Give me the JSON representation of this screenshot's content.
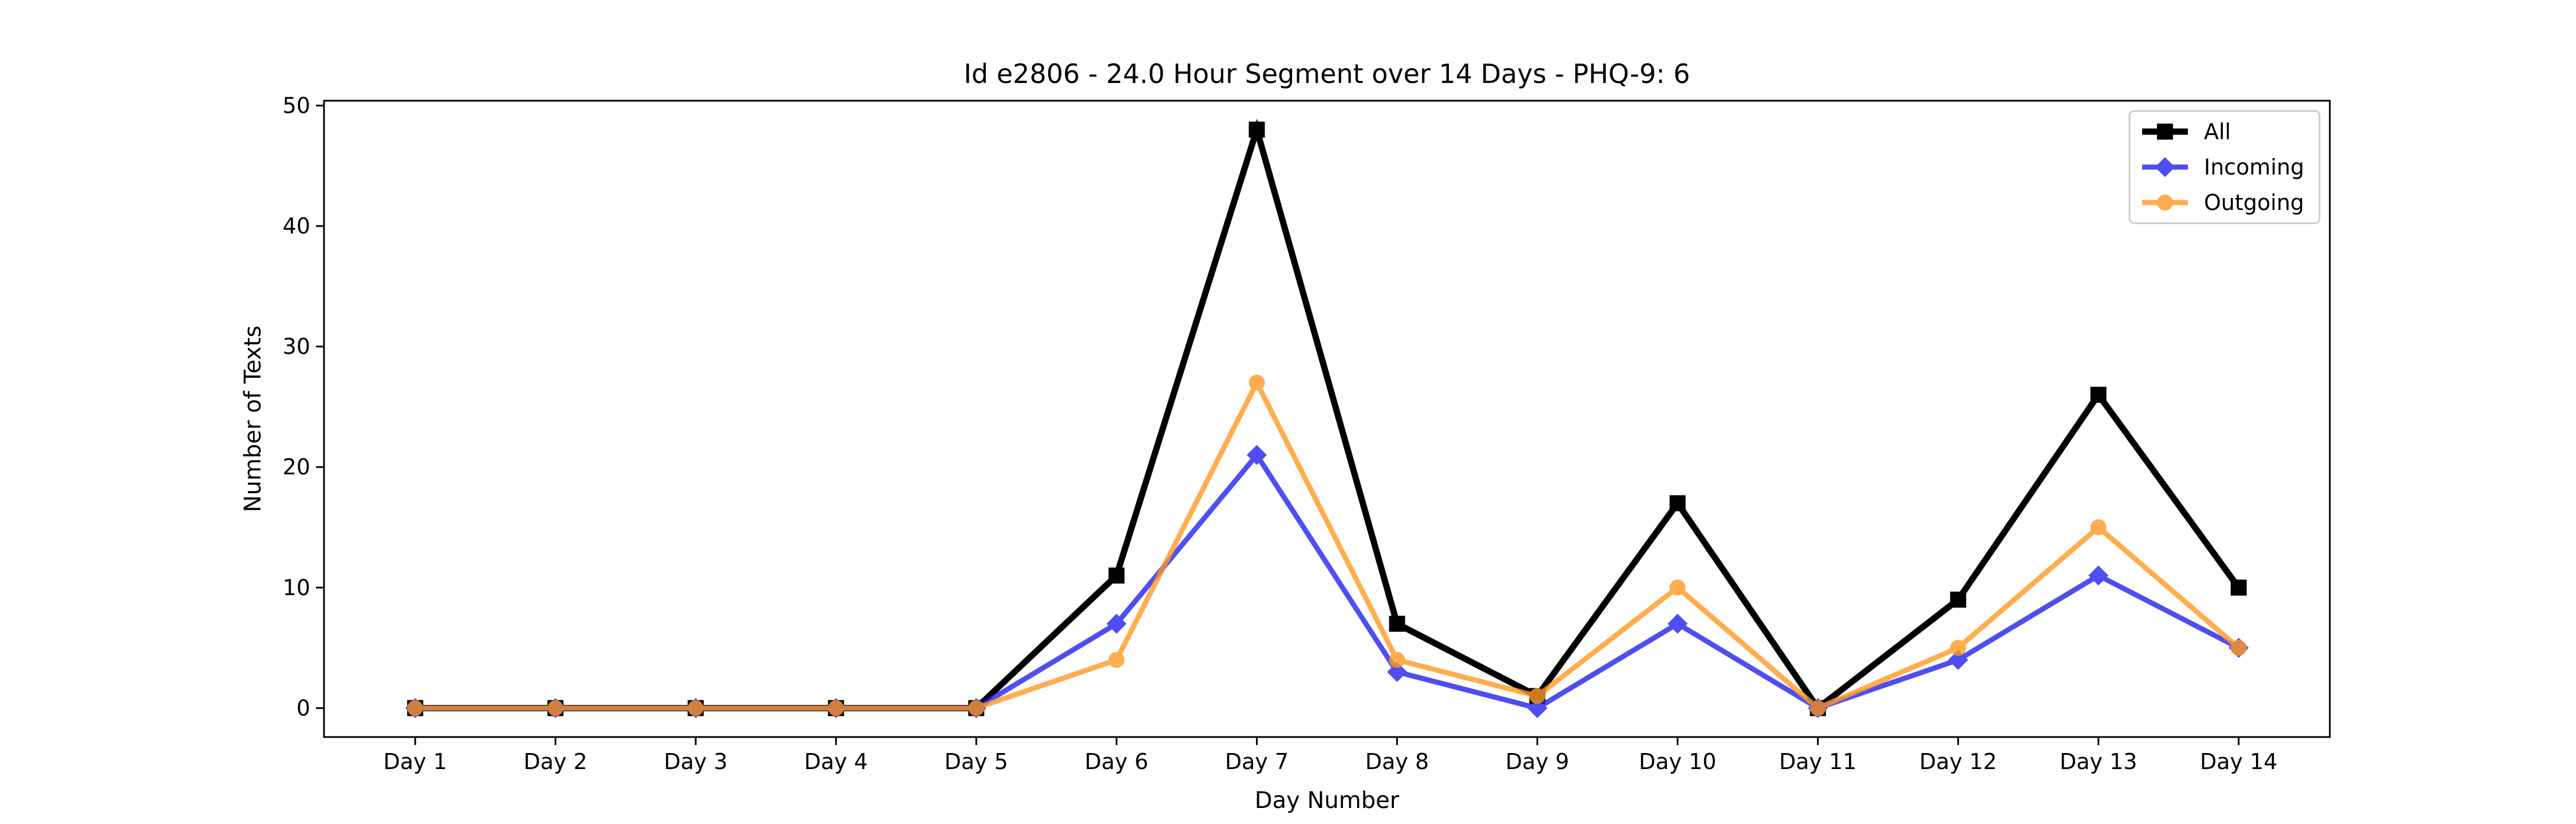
{
  "chart_data": {
    "type": "line",
    "title": "Id e2806 - 24.0 Hour Segment over 14 Days - PHQ-9: 6",
    "xlabel": "Day Number",
    "ylabel": "Number of Texts",
    "categories": [
      "Day 1",
      "Day 2",
      "Day 3",
      "Day 4",
      "Day 5",
      "Day 6",
      "Day 7",
      "Day 8",
      "Day 9",
      "Day 10",
      "Day 11",
      "Day 12",
      "Day 13",
      "Day 14"
    ],
    "ylim": [
      -2.4,
      50.4
    ],
    "yticks": [
      0,
      10,
      20,
      30,
      40,
      50
    ],
    "grid": false,
    "legend_position": "top-right",
    "series": [
      {
        "name": "All",
        "color": "#000000",
        "marker": "square",
        "values": [
          0,
          0,
          0,
          0,
          0,
          11,
          48,
          7,
          1,
          17,
          0,
          9,
          26,
          10
        ]
      },
      {
        "name": "Incoming",
        "color": "#2222ee",
        "marker": "diamond",
        "values": [
          0,
          0,
          0,
          0,
          0,
          7,
          21,
          3,
          0,
          7,
          0,
          4,
          11,
          5
        ]
      },
      {
        "name": "Outgoing",
        "color": "#ff9922",
        "marker": "circle",
        "values": [
          0,
          0,
          0,
          0,
          0,
          4,
          27,
          4,
          1,
          10,
          0,
          5,
          15,
          5
        ]
      }
    ]
  }
}
